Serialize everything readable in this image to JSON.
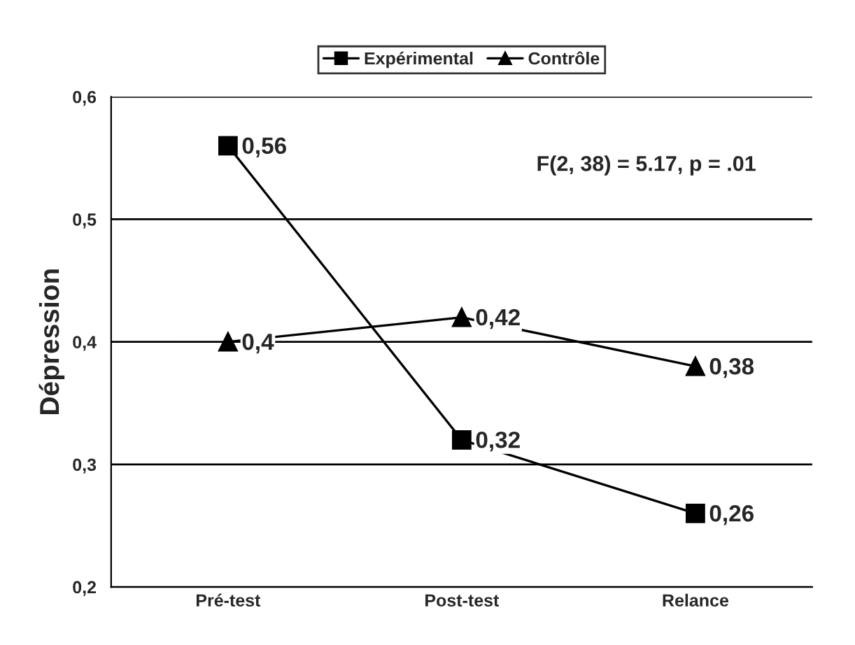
{
  "chart_data": {
    "type": "line",
    "ylabel": "Dépression",
    "categories": [
      "Pré-test",
      "Post-test",
      "Relance"
    ],
    "series": [
      {
        "name": "Expérimental",
        "color": "#000000",
        "marker": "square",
        "values": [
          0.56,
          0.32,
          0.26
        ],
        "value_labels": [
          "0,56",
          "0,32",
          "0,26"
        ]
      },
      {
        "name": "Contrôle",
        "color": "#000000",
        "marker": "triangle",
        "values": [
          0.4,
          0.42,
          0.38
        ],
        "value_labels": [
          "0,4",
          "0,42",
          "0,38"
        ]
      }
    ],
    "ylim": [
      0.2,
      0.6
    ],
    "yticks": [
      {
        "value": 0.2,
        "label": "0,2"
      },
      {
        "value": 0.3,
        "label": "0,3"
      },
      {
        "value": 0.4,
        "label": "0,4"
      },
      {
        "value": 0.5,
        "label": "0,5"
      },
      {
        "value": 0.6,
        "label": "0,6"
      }
    ],
    "grid": "y",
    "legend": "top",
    "line_style": "solid",
    "annotations": [
      "F(2, 38) = 5.17, p = .01"
    ]
  }
}
